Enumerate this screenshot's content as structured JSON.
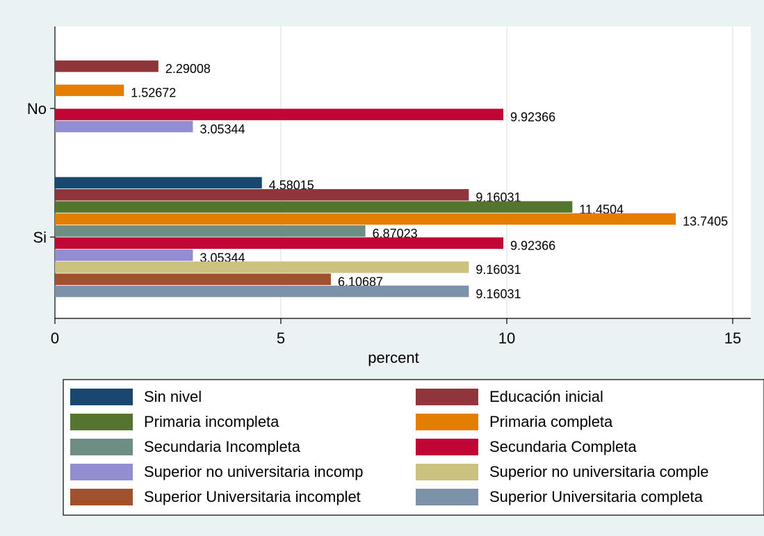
{
  "chart_data": {
    "type": "hbar",
    "x_label": "percent",
    "categories": [
      "No",
      "Si"
    ],
    "xlim": [
      0,
      15.4
    ],
    "xticks": [
      0,
      5,
      10,
      15
    ],
    "grid": true,
    "legend": "bottom",
    "series": [
      {
        "name": "Sin nivel",
        "color": "#1a476f",
        "values": [
          null,
          4.58015
        ]
      },
      {
        "name": "Educación inicial",
        "color": "#90353b",
        "values": [
          2.29008,
          9.16031
        ]
      },
      {
        "name": "Primaria incompleta",
        "color": "#55752f",
        "values": [
          null,
          11.4504
        ]
      },
      {
        "name": "Primaria completa",
        "color": "#e37e00",
        "values": [
          1.52672,
          13.7405
        ]
      },
      {
        "name": "Secundaria Incompleta",
        "color": "#6e8e84",
        "values": [
          null,
          6.87023
        ]
      },
      {
        "name": "Secundaria Completa",
        "color": "#c10534",
        "values": [
          9.92366,
          9.92366
        ]
      },
      {
        "name": "Superior no universitaria incomp",
        "color": "#938dd2",
        "values": [
          3.05344,
          3.05344
        ]
      },
      {
        "name": "Superior no universitaria comple",
        "color": "#cac27e",
        "values": [
          null,
          9.16031
        ]
      },
      {
        "name": "Superior Universitaria incomplet",
        "color": "#a0522d",
        "values": [
          null,
          6.10687
        ]
      },
      {
        "name": "Superior Universitaria completa",
        "color": "#7b92a8",
        "values": [
          null,
          9.16031
        ]
      }
    ]
  }
}
